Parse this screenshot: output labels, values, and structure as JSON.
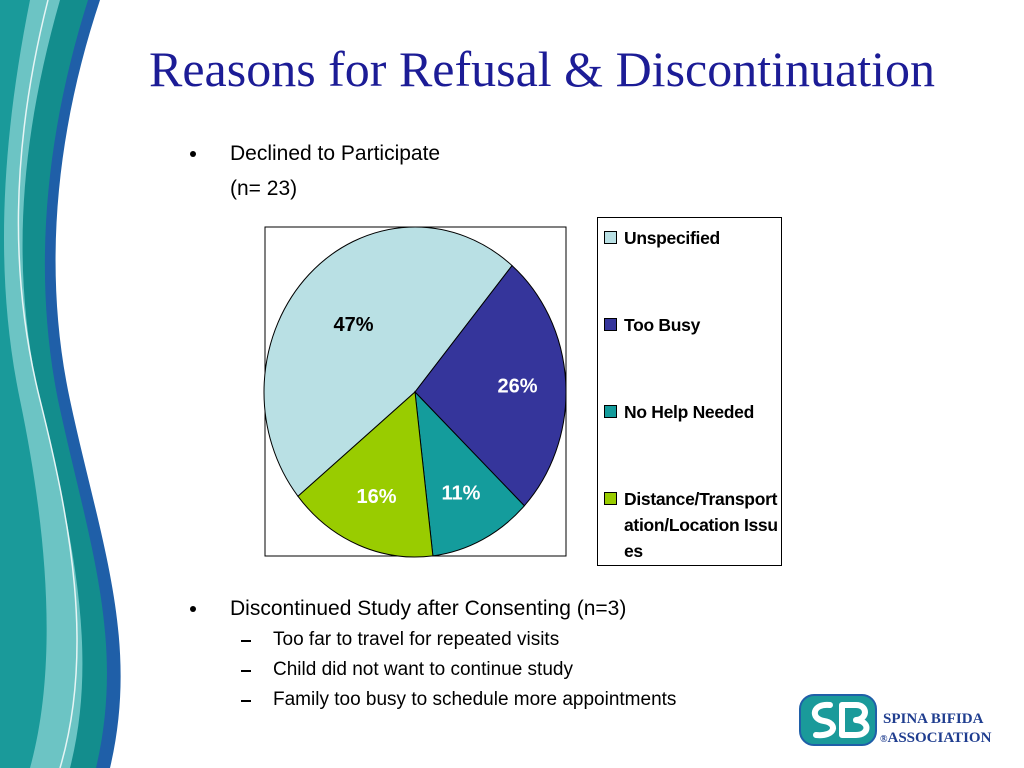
{
  "title": "Reasons for Refusal & Discontinuation",
  "bullets": [
    {
      "text": "Declined to Participate",
      "subtext": "(n= 23)"
    },
    {
      "text": "Discontinued Study after Consenting (n=3)",
      "items": [
        "Too far to travel for repeated visits",
        "Child did not want to continue study",
        "Family too busy to schedule more appointments"
      ]
    }
  ],
  "chart_data": {
    "type": "pie",
    "categories": [
      "Unspecified",
      "Too Busy",
      "No Help Needed",
      "Distance/Transportation/Location Issues"
    ],
    "values": [
      47,
      26,
      11,
      16
    ],
    "value_labels": [
      "47%",
      "26%",
      "11%",
      "16%"
    ],
    "colors": [
      "#b9e0e4",
      "#35359b",
      "#149c9c",
      "#99cc00"
    ],
    "legend": "right"
  },
  "logo": {
    "line1": "SPINA BIFIDA",
    "mark": "®",
    "line2": "ASSOCIATION"
  }
}
